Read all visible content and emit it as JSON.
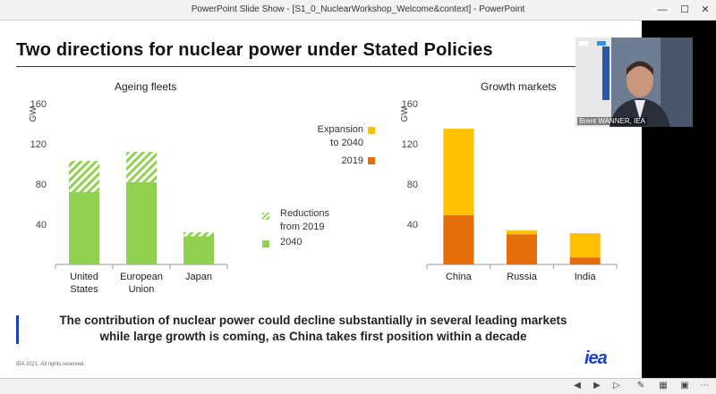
{
  "window": {
    "title": "PowerPoint Slide Show - [S1_0_NuclearWorkshop_Welcome&context] - PowerPoint"
  },
  "slide": {
    "title": "Two directions for nuclear power under Stated Policies",
    "message_line1": "The contribution of nuclear power could decline substantially in several leading markets",
    "message_line2": "while large growth is coming, as China takes first position within a decade",
    "footer": "IEA 2021. All rights reserved.",
    "logo": "iea"
  },
  "legend_left": {
    "reductions_line1": "Reductions",
    "reductions_line2": "from 2019",
    "y2040": "2040"
  },
  "legend_right": {
    "expansion_line1": "Expansion",
    "expansion_line2": "to 2040",
    "y2019": "2019"
  },
  "video": {
    "name": "Brent WANNER, IEA"
  },
  "colors": {
    "green": "#92d050",
    "yellow": "#ffc000",
    "orange": "#e46c0a",
    "accent": "#1f3fbf"
  },
  "chart_data": [
    {
      "type": "bar",
      "title": "Ageing fleets",
      "ylabel": "GW",
      "ylim": [
        0,
        160
      ],
      "yticks": [
        40,
        80,
        120,
        160
      ],
      "categories": [
        [
          "United",
          "States"
        ],
        [
          "European",
          "Union"
        ],
        [
          "Japan"
        ]
      ],
      "series": [
        {
          "name": "2040",
          "values": [
            72,
            82,
            28
          ]
        },
        {
          "name": "Reductions from 2019",
          "values": [
            31,
            30,
            4
          ]
        }
      ]
    },
    {
      "type": "bar",
      "title": "Growth markets",
      "ylabel": "GW",
      "ylim": [
        0,
        160
      ],
      "yticks": [
        40,
        80,
        120,
        160
      ],
      "categories": [
        [
          "China"
        ],
        [
          "Russia"
        ],
        [
          "India"
        ]
      ],
      "series": [
        {
          "name": "2019",
          "values": [
            49,
            30,
            7
          ]
        },
        {
          "name": "Expansion to 2040",
          "values": [
            86,
            4,
            24
          ]
        }
      ]
    }
  ]
}
